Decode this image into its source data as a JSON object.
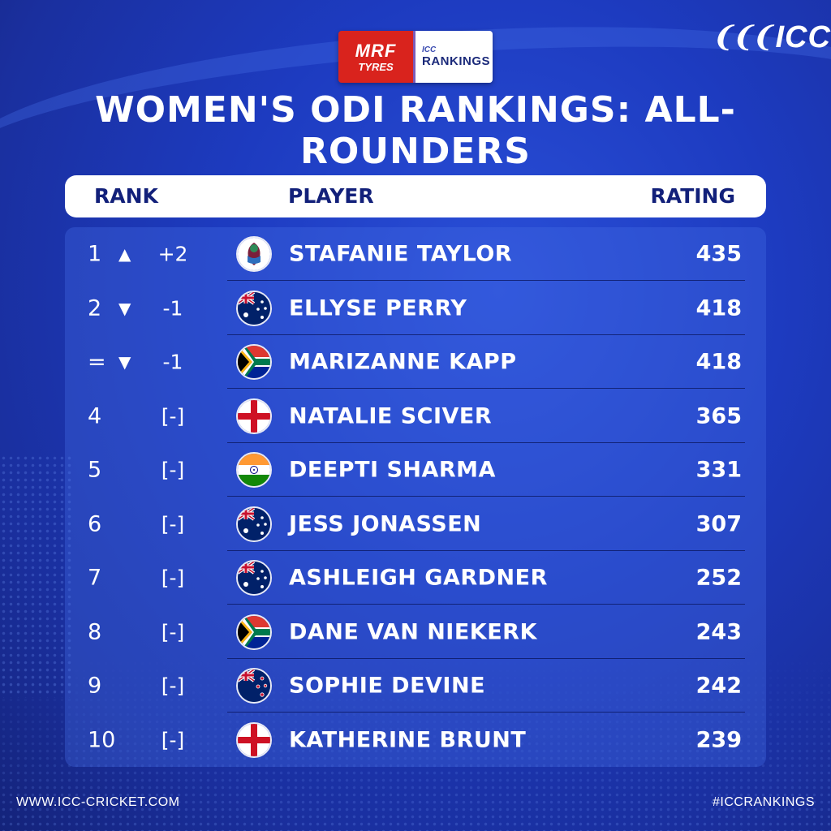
{
  "sponsor": {
    "mrf": "MRF",
    "tyres": "TYRES",
    "icc_small": "ICC",
    "rankings": "RANKINGS"
  },
  "brand": {
    "logo_text": "ICC"
  },
  "title": "WOMEN'S ODI RANKINGS: ALL-ROUNDERS",
  "header": {
    "rank": "RANK",
    "player": "PLAYER",
    "rating": "RATING"
  },
  "rows": [
    {
      "rank": "1",
      "trend": "up",
      "change": "+2",
      "flag": "west-indies",
      "name": "STAFANIE TAYLOR",
      "rating": "435"
    },
    {
      "rank": "2",
      "trend": "down",
      "change": "-1",
      "flag": "australia",
      "name": "ELLYSE PERRY",
      "rating": "418"
    },
    {
      "rank": "=",
      "trend": "down",
      "change": "-1",
      "flag": "south-africa",
      "name": "MARIZANNE KAPP",
      "rating": "418"
    },
    {
      "rank": "4",
      "trend": "none",
      "change": "[-]",
      "flag": "england",
      "name": "NATALIE SCIVER",
      "rating": "365"
    },
    {
      "rank": "5",
      "trend": "none",
      "change": "[-]",
      "flag": "india",
      "name": "DEEPTI SHARMA",
      "rating": "331"
    },
    {
      "rank": "6",
      "trend": "none",
      "change": "[-]",
      "flag": "australia",
      "name": "JESS JONASSEN",
      "rating": "307"
    },
    {
      "rank": "7",
      "trend": "none",
      "change": "[-]",
      "flag": "australia",
      "name": "ASHLEIGH GARDNER",
      "rating": "252"
    },
    {
      "rank": "8",
      "trend": "none",
      "change": "[-]",
      "flag": "south-africa",
      "name": "DANE VAN NIEKERK",
      "rating": "243"
    },
    {
      "rank": "9",
      "trend": "none",
      "change": "[-]",
      "flag": "new-zealand",
      "name": "SOPHIE DEVINE",
      "rating": "242"
    },
    {
      "rank": "10",
      "trend": "none",
      "change": "[-]",
      "flag": "england",
      "name": "KATHERINE BRUNT",
      "rating": "239"
    }
  ],
  "footer": {
    "website": "WWW.ICC-CRICKET.COM",
    "hashtag": "#ICCRANKINGS"
  },
  "colors": {
    "background": "#1d3bc0",
    "header_text": "#12207a",
    "panel": "#466ee6"
  }
}
